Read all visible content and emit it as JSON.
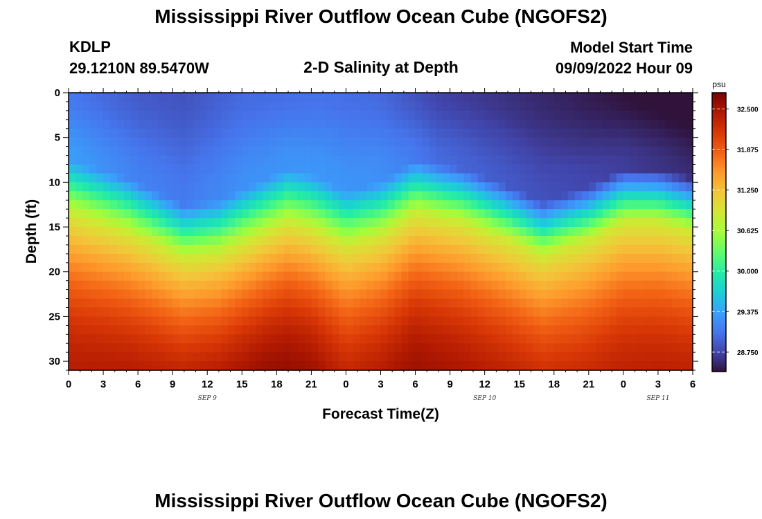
{
  "page": {
    "title": "Mississippi River Outflow Ocean Cube (NGOFS2)",
    "title_repeat": "Mississippi River Outflow Ocean Cube (NGOFS2)",
    "station_id": "KDLP",
    "station_coords": "29.1210N  89.5470W",
    "subtitle": "2-D Salinity at Depth",
    "model_start_label": "Model Start Time",
    "model_start_value": "09/09/2022 Hour 09"
  },
  "chart_data": {
    "type": "heatmap",
    "title": "2-D Salinity at Depth",
    "xlabel": "Forecast Time(Z)",
    "ylabel": "Depth (ft)",
    "x_tick_labels": [
      "0",
      "3",
      "6",
      "9",
      "12",
      "15",
      "18",
      "21",
      "0",
      "3",
      "6",
      "9",
      "12",
      "15",
      "18",
      "21",
      "0",
      "3",
      "6"
    ],
    "x_tick_hours": [
      0,
      3,
      6,
      9,
      12,
      15,
      18,
      21,
      24,
      27,
      30,
      33,
      36,
      39,
      42,
      45,
      48,
      51,
      54
    ],
    "x_range_hours": [
      0,
      54
    ],
    "date_labels": [
      {
        "text": "SEP 9",
        "hour": 12
      },
      {
        "text": "SEP 10",
        "hour": 36
      },
      {
        "text": "SEP 11",
        "hour": 51
      }
    ],
    "y_ticks": [
      0,
      5,
      10,
      15,
      20,
      25,
      30
    ],
    "y_tick_labels": [
      "0",
      "5",
      "10",
      "15",
      "20",
      "25",
      "30"
    ],
    "ylim": [
      0,
      31
    ],
    "y_inverted": true,
    "colorbar": {
      "unit": "psu",
      "tick_values": [
        32.5,
        31.875,
        31.25,
        30.625,
        30.0,
        29.375,
        28.75
      ],
      "tick_labels": [
        "32.500",
        "31.875",
        "31.250",
        "30.625",
        "30.000",
        "29.375",
        "28.750"
      ],
      "range": [
        28.45,
        32.75
      ],
      "colormap": [
        "#30123b",
        "#4145ab",
        "#4675ed",
        "#39a2fc",
        "#1bcfd4",
        "#24eca6",
        "#61fc6c",
        "#a4fc3b",
        "#d1e834",
        "#f3c63a",
        "#fe9b2d",
        "#f36315",
        "#d93806",
        "#b11901",
        "#7a0402"
      ]
    },
    "surface_value_by_hour": [
      [
        0,
        29.1
      ],
      [
        6,
        28.9
      ],
      [
        10,
        28.85
      ],
      [
        15,
        29.0
      ],
      [
        22,
        29.05
      ],
      [
        27,
        29.0
      ],
      [
        32,
        28.75
      ],
      [
        40,
        28.6
      ],
      [
        46,
        28.5
      ],
      [
        54,
        28.35
      ]
    ],
    "halocline_center_depth_ft_by_hour": [
      [
        0,
        10.5
      ],
      [
        5,
        12.5
      ],
      [
        10,
        15.5
      ],
      [
        13,
        15.0
      ],
      [
        19,
        11.5
      ],
      [
        21,
        12.2
      ],
      [
        24,
        14.0
      ],
      [
        27,
        13.0
      ],
      [
        30,
        10.5
      ],
      [
        34,
        11.5
      ],
      [
        38,
        13.5
      ],
      [
        41,
        15.2
      ],
      [
        45,
        13.5
      ],
      [
        48,
        11.5
      ],
      [
        51,
        11.5
      ],
      [
        54,
        12.5
      ]
    ],
    "halocline_thickness_ft": 6,
    "deep_value_by_hour": [
      [
        0,
        32.4
      ],
      [
        8,
        32.5
      ],
      [
        17,
        32.65
      ],
      [
        21,
        32.6
      ],
      [
        24,
        32.4
      ],
      [
        30,
        32.55
      ],
      [
        36,
        32.45
      ],
      [
        44,
        32.35
      ],
      [
        54,
        32.4
      ]
    ],
    "deep_gradient_ft": 18
  }
}
